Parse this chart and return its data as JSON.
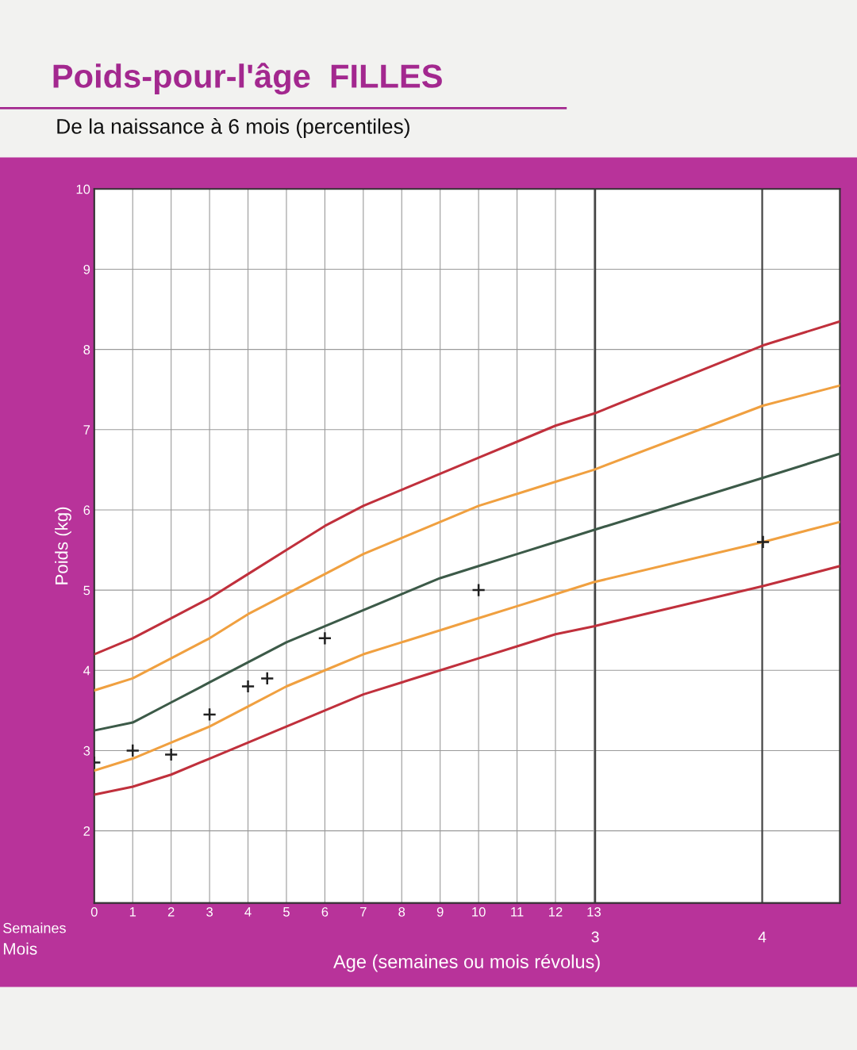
{
  "chart_data": {
    "type": "line",
    "title": "Poids-pour-l'âge  FILLES",
    "subtitle": "De la naissance à 6 mois (percentiles)",
    "xlabel": "Age (semaines ou mois révolus)",
    "ylabel": "Poids (kg)",
    "annotations": [
      "Semaines",
      "Mois"
    ],
    "x": [
      0,
      1,
      2,
      3,
      4,
      5,
      6,
      7,
      8,
      9,
      10,
      11,
      12,
      13,
      17.4,
      19.4
    ],
    "series": [
      {
        "color": "#c0303c",
        "values": [
          2.45,
          2.55,
          2.7,
          2.9,
          3.1,
          3.3,
          3.5,
          3.7,
          3.85,
          4.0,
          4.15,
          4.3,
          4.45,
          4.55,
          5.05,
          5.3
        ]
      },
      {
        "color": "#f0a040",
        "values": [
          2.75,
          2.9,
          3.1,
          3.3,
          3.55,
          3.8,
          4.0,
          4.2,
          4.35,
          4.5,
          4.65,
          4.8,
          4.95,
          5.1,
          5.6,
          5.85
        ]
      },
      {
        "color": "#3c5a48",
        "values": [
          3.25,
          3.35,
          3.6,
          3.85,
          4.1,
          4.35,
          4.55,
          4.75,
          4.95,
          5.15,
          5.3,
          5.45,
          5.6,
          5.75,
          6.4,
          6.7
        ]
      },
      {
        "color": "#f0a040",
        "values": [
          3.75,
          3.9,
          4.15,
          4.4,
          4.7,
          4.95,
          5.2,
          5.45,
          5.65,
          5.85,
          6.05,
          6.2,
          6.35,
          6.5,
          7.3,
          7.55
        ]
      },
      {
        "color": "#c0303c",
        "values": [
          4.2,
          4.4,
          4.65,
          4.9,
          5.2,
          5.5,
          5.8,
          6.05,
          6.25,
          6.45,
          6.65,
          6.85,
          7.05,
          7.2,
          8.05,
          8.35
        ]
      },
      {
        "type": "scatter",
        "color": "#202020",
        "marker": "cross",
        "x": [
          0,
          1,
          2,
          3,
          4,
          4.5,
          6,
          10,
          17.4
        ],
        "values": [
          2.85,
          3.0,
          2.95,
          3.45,
          3.8,
          3.9,
          4.4,
          5.0,
          5.6
        ]
      }
    ],
    "xlim": [
      0,
      19.4
    ],
    "xticks": [
      0,
      1,
      2,
      3,
      4,
      5,
      6,
      7,
      8,
      9,
      10,
      11,
      12,
      13
    ],
    "x2lim": [
      0,
      4.465
    ],
    "x2ticks": [
      3,
      4
    ],
    "ylim": [
      1.1,
      10
    ],
    "yticks": [
      2,
      3,
      4,
      5,
      6,
      7,
      8,
      9,
      10
    ],
    "grid": true,
    "legend": false
  }
}
